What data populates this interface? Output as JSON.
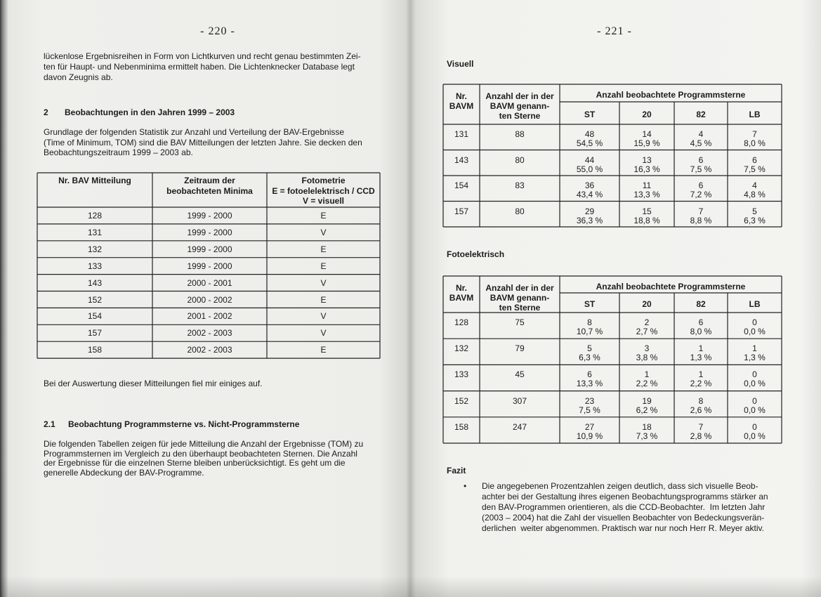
{
  "left_page": {
    "page_number": "- 220 -",
    "intro_lines": [
      "lückenlose Ergebnisreihen in Form von Lichtkurven und recht genau bestimmten Zei-",
      "ten für Haupt- und Nebenminima ermittelt haben. Die Lichtenknecker Database legt",
      "davon Zeugnis ab."
    ],
    "section": {
      "number": "2",
      "title": "Beobachtungen in den Jahren 1999 – 2003"
    },
    "section_lines": [
      "Grundlage der folgenden Statistik zur Anzahl und Verteilung der BAV-Ergebnisse",
      "(Time of Minimum, TOM) sind die BAV Mitteilungen der letzten Jahre. Sie decken den",
      "Beobachtungszeitraum 1999 – 2003 ab."
    ],
    "table": {
      "headers": [
        [
          "Nr. BAV Mitteilung"
        ],
        [
          "Zeitraum der",
          "beobachteten Minima"
        ],
        [
          "Fotometrie",
          "E = fotoelelektrisch / CCD",
          "V = visuell"
        ]
      ],
      "rows": [
        [
          128,
          "1999 - 2000",
          "E"
        ],
        [
          131,
          "1999 - 2000",
          "V"
        ],
        [
          132,
          "1999 - 2000",
          "E"
        ],
        [
          133,
          "1999 - 2000",
          "E"
        ],
        [
          143,
          "2000 - 2001",
          "V"
        ],
        [
          152,
          "2000 - 2002",
          "E"
        ],
        [
          154,
          "2001 - 2002",
          "V"
        ],
        [
          157,
          "2002 - 2003",
          "V"
        ],
        [
          158,
          "2002 - 2003",
          "E"
        ]
      ]
    },
    "after_table": "Bei der Auswertung dieser Mitteilungen fiel mir einiges auf.",
    "subsection": {
      "number": "2.1",
      "title": "Beobachtung Programmsterne vs. Nicht-Programmsterne"
    },
    "subsection_lines": [
      "Die folgenden Tabellen zeigen für jede Mitteilung die Anzahl der Ergebnisse (TOM) zu",
      "Programmsternen im Vergleich zu den überhaupt beobachteten Sternen. Die Anzahl",
      "der Ergebnisse für die einzelnen Sterne bleiben unberücksichtigt. Es geht um die",
      "generelle Abdeckung der BAV-Programme."
    ]
  },
  "right_page": {
    "page_number": "- 221 -",
    "visuell": {
      "heading": "Visuell",
      "header_nr": [
        "Nr.",
        "BAVM"
      ],
      "header_total": [
        "Anzahl der in der",
        "BAVM genann-",
        "ten Sterne"
      ],
      "header_group": "Anzahl beobachtete Programmsterne",
      "columns": [
        "ST",
        "20",
        "82",
        "LB"
      ],
      "rows": [
        {
          "nr": 131,
          "total": 88,
          "cells": [
            {
              "n": 48,
              "pct": "54,5 %"
            },
            {
              "n": 14,
              "pct": "15,9 %"
            },
            {
              "n": 4,
              "pct": "4,5 %"
            },
            {
              "n": 7,
              "pct": "8,0 %"
            }
          ]
        },
        {
          "nr": 143,
          "total": 80,
          "cells": [
            {
              "n": 44,
              "pct": "55,0 %"
            },
            {
              "n": 13,
              "pct": "16,3 %"
            },
            {
              "n": 6,
              "pct": "7,5 %"
            },
            {
              "n": 6,
              "pct": "7,5 %"
            }
          ]
        },
        {
          "nr": 154,
          "total": 83,
          "cells": [
            {
              "n": 36,
              "pct": "43,4 %"
            },
            {
              "n": 11,
              "pct": "13,3 %"
            },
            {
              "n": 6,
              "pct": "7,2 %"
            },
            {
              "n": 4,
              "pct": "4,8 %"
            }
          ]
        },
        {
          "nr": 157,
          "total": 80,
          "cells": [
            {
              "n": 29,
              "pct": "36,3 %"
            },
            {
              "n": 15,
              "pct": "18,8 %"
            },
            {
              "n": 7,
              "pct": "8,8 %"
            },
            {
              "n": 5,
              "pct": "6,3 %"
            }
          ]
        }
      ]
    },
    "fotoelektrisch": {
      "heading": "Fotoelektrisch",
      "header_nr": [
        "Nr.",
        "BAVM"
      ],
      "header_total": [
        "Anzahl der in der",
        "BAVM genann-",
        "ten Sterne"
      ],
      "header_group": "Anzahl beobachtete Programmsterne",
      "columns": [
        "ST",
        "20",
        "82",
        "LB"
      ],
      "rows": [
        {
          "nr": 128,
          "total": 75,
          "cells": [
            {
              "n": 8,
              "pct": "10,7 %"
            },
            {
              "n": 2,
              "pct": "2,7 %"
            },
            {
              "n": 6,
              "pct": "8,0 %"
            },
            {
              "n": 0,
              "pct": "0,0 %"
            }
          ]
        },
        {
          "nr": 132,
          "total": 79,
          "cells": [
            {
              "n": 5,
              "pct": "6,3 %"
            },
            {
              "n": 3,
              "pct": "3,8 %"
            },
            {
              "n": 1,
              "pct": "1,3 %"
            },
            {
              "n": 1,
              "pct": "1,3 %"
            }
          ]
        },
        {
          "nr": 133,
          "total": 45,
          "cells": [
            {
              "n": 6,
              "pct": "13,3 %"
            },
            {
              "n": 1,
              "pct": "2,2 %"
            },
            {
              "n": 1,
              "pct": "2,2 %"
            },
            {
              "n": 0,
              "pct": "0,0 %"
            }
          ]
        },
        {
          "nr": 152,
          "total": 307,
          "cells": [
            {
              "n": 23,
              "pct": "7,5 %"
            },
            {
              "n": 19,
              "pct": "6,2 %"
            },
            {
              "n": 8,
              "pct": "2,6 %"
            },
            {
              "n": 0,
              "pct": "0,0 %"
            }
          ]
        },
        {
          "nr": 158,
          "total": 247,
          "cells": [
            {
              "n": 27,
              "pct": "10,9 %"
            },
            {
              "n": 18,
              "pct": "7,3 %"
            },
            {
              "n": 7,
              "pct": "2,8 %"
            },
            {
              "n": 0,
              "pct": "0,0 %"
            }
          ]
        }
      ]
    },
    "fazit": {
      "heading": "Fazit",
      "bullet": "•",
      "lines": [
        "Die angegebenen Prozentzahlen zeigen deutlich, dass sich visuelle Beob-",
        "achter bei der Gestaltung ihres eigenen Beobachtungsprogramms stärker an",
        "den BAV-Programmen orientieren, als die CCD-Beobachter.  Im letzten Jahr",
        "(2003 – 2004) hat die Zahl der visuellen Beobachter von Bedeckungsverän-",
        "derlichen  weiter abgenommen. Praktisch war nur noch Herr R. Meyer aktiv."
      ]
    }
  }
}
